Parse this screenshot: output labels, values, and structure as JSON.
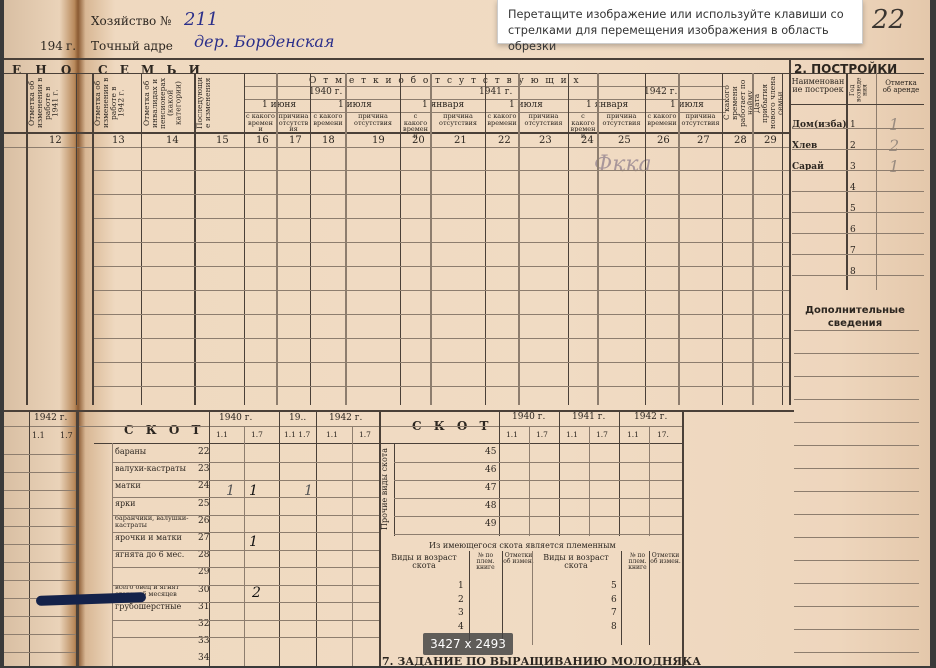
{
  "viewer": {
    "tooltip": "Перетащите изображение или используйте клавиши со стрелками для перемещения изображения в область обрезки",
    "image_size": "3427 x 2493"
  },
  "doc": {
    "household_label": "Хозяйство №",
    "household_no": "211",
    "year_prefix": "194",
    "year_suffix": "г.",
    "address_label": "Точный адре",
    "address_value": "дер. Борденская",
    "page_no": "22",
    "section_left": "Е Н О",
    "section_family": "С Е М Ь И",
    "col_headers": {
      "c11": "Отметка об изменении в работе в 1941 г.",
      "c13": "Отметка об изменении в работе в 1942 г.",
      "c14": "Отметка об инвалидах и пенсионерах (какой категории)",
      "c15": "Последующие изменения",
      "c28": "С какого времени работает по найму",
      "c29": "Дата прибытия нового члена семьи"
    },
    "absent_title": "О т м е т к и   о б   о т с у т с т в у ю щ и х",
    "years": [
      "1940 г.",
      "1941 г.",
      "1942 г."
    ],
    "dates": [
      "1 июня",
      "1 июля",
      "1 января",
      "1 июля",
      "1 января",
      "1 июля"
    ],
    "sub_from": "с какого времени",
    "sub_reason": "причина отсутствия",
    "col_numbers": [
      "12",
      "13",
      "14",
      "15",
      "16",
      "17",
      "18",
      "19",
      "20",
      "21",
      "22",
      "23",
      "24",
      "25",
      "26",
      "27",
      "28",
      "29"
    ],
    "handwritten_note": "Фкка",
    "buildings": {
      "title": "2. ПОСТРОЙКИ",
      "h_name": "Наименование построек",
      "h_year": "Год возведения",
      "h_rent": "Отметка об аренде",
      "rows": [
        {
          "name": "Дом(изба)",
          "n": "1",
          "rent": "1"
        },
        {
          "name": "Хлев",
          "n": "2",
          "rent": "2"
        },
        {
          "name": "Сарай",
          "n": "3",
          "rent": "1"
        },
        {
          "name": "",
          "n": "4"
        },
        {
          "name": "",
          "n": "5"
        },
        {
          "name": "",
          "n": "6"
        },
        {
          "name": "",
          "n": "7"
        },
        {
          "name": "",
          "n": "8"
        }
      ],
      "extra": "Дополнительные сведения"
    },
    "livestock_left": {
      "title": "С К О Т",
      "years": [
        "1940 г.",
        "19..",
        "1942 г."
      ],
      "dates": [
        "1.1",
        "1.7",
        "1.1 1.7",
        "1.1",
        "1.7"
      ],
      "rows": [
        {
          "label": "бараны",
          "n": "22"
        },
        {
          "label": "валухи-кастраты",
          "n": "23"
        },
        {
          "label": "матки",
          "n": "24"
        },
        {
          "label": "ярки",
          "n": "25"
        },
        {
          "label": "баранчики, валушки-кастраты",
          "n": "26"
        },
        {
          "label": "ярочки и матки",
          "n": "27"
        },
        {
          "label": "ягнята до 6 мес.",
          "n": "28"
        },
        {
          "label": "",
          "n": "29"
        },
        {
          "label": "всего овец и ягнят старше 6 месяцев",
          "n": "30"
        },
        {
          "label": "грубошерстные",
          "n": "31"
        },
        {
          "label": "",
          "n": "32"
        },
        {
          "label": "",
          "n": "33"
        },
        {
          "label": "",
          "n": "34"
        }
      ],
      "marks": [
        "1",
        "1",
        "1",
        "1",
        "2"
      ]
    },
    "far_left": {
      "year": "1942 г.",
      "dates": [
        "1.1",
        "1.7"
      ]
    },
    "livestock_right": {
      "title": "С К О Т",
      "side_label": "Прочие виды скота",
      "years": [
        "1940 г.",
        "1941 г.",
        "1942 г."
      ],
      "dates": [
        "1.1",
        "1.7",
        "1.1",
        "1.7",
        "1.1",
        "17."
      ],
      "numbers": [
        "45",
        "46",
        "47",
        "48",
        "49"
      ]
    },
    "breeding": {
      "title": "Из имеющегося скота является племенным",
      "h_kind": "Виды и возраст скота",
      "h_book": "№ по плем. книге",
      "h_mark": "Отметки об измен.",
      "left_n": [
        "1",
        "2",
        "3",
        "4"
      ],
      "right_n": [
        "5",
        "6",
        "7",
        "8"
      ]
    },
    "section7": "7. ЗАДАНИЕ ПО ВЫРАЩИВАНИЮ МОЛОДНЯКА"
  }
}
